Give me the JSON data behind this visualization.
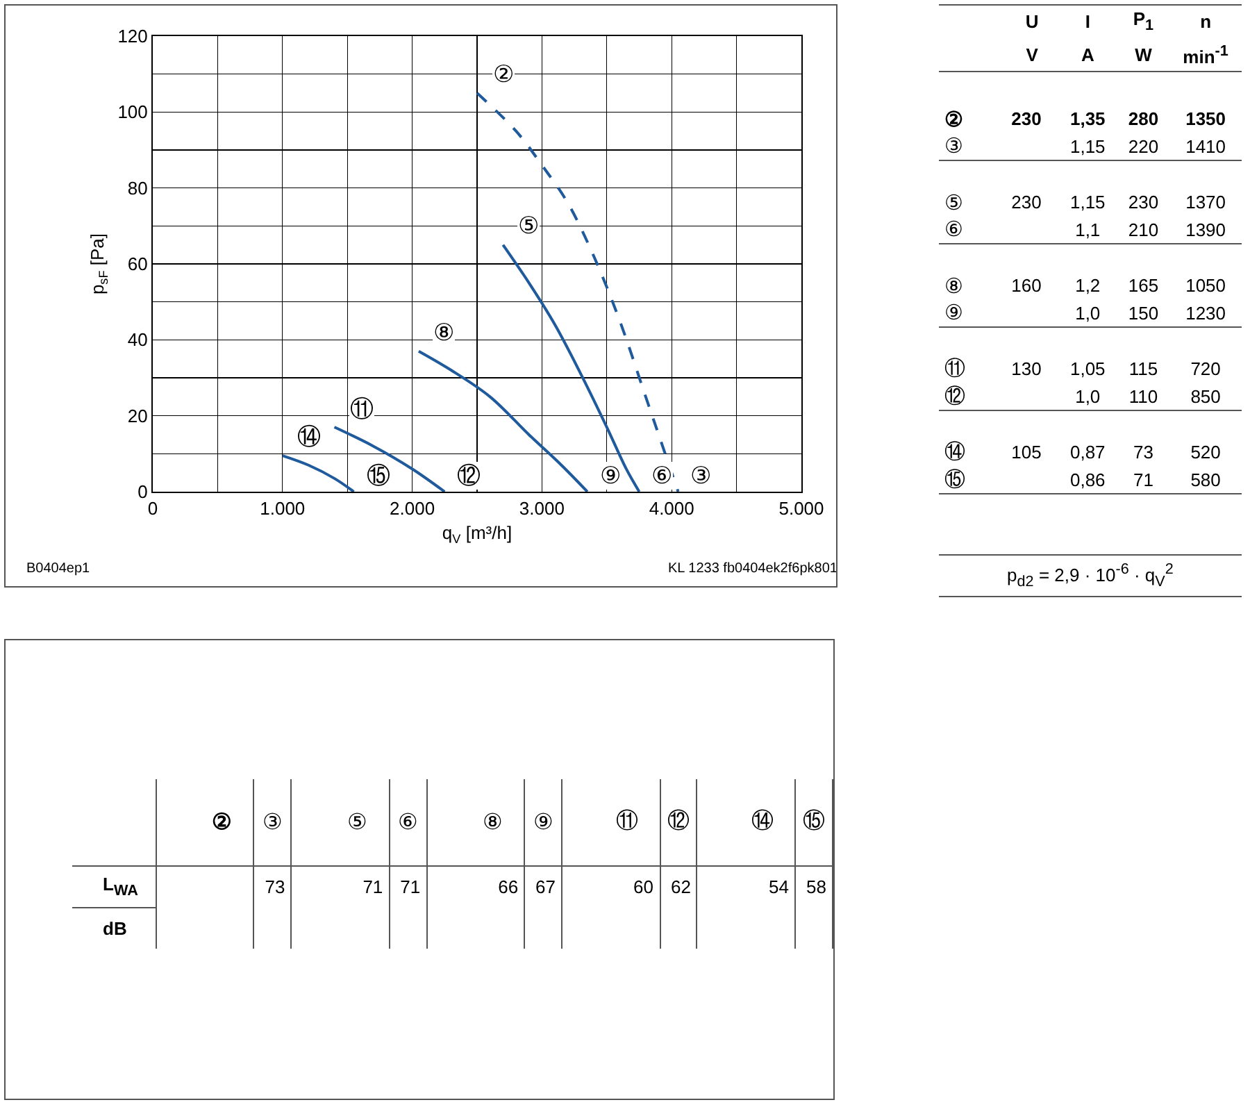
{
  "chart_data": [
    {
      "type": "line",
      "xlabel": "q$_{V}$ [m³/h]",
      "ylabel": "p$_{sF}$ [Pa]",
      "xlim": [
        0,
        5000
      ],
      "ylim": [
        0,
        120
      ],
      "xticks": [
        0,
        {
          "value": 500,
          "label": null
        },
        {
          "value": 1000,
          "label": "1.000"
        },
        {
          "value": 1500,
          "label": null
        },
        {
          "value": 2000,
          "label": "2.000"
        },
        {
          "value": 2500,
          "label": null
        },
        {
          "value": 3000,
          "label": "3.000"
        },
        {
          "value": 3500,
          "label": null
        },
        {
          "value": 4000,
          "label": "4.000"
        },
        {
          "value": 4500,
          "label": null
        },
        {
          "value": 5000,
          "label": "5.000"
        }
      ],
      "yticks": [
        0,
        {
          "value": 10,
          "label": null
        },
        20,
        {
          "value": 30,
          "label": null
        },
        40,
        {
          "value": 50,
          "label": null
        },
        60,
        {
          "value": 70,
          "label": null
        },
        80,
        {
          "value": 90,
          "label": null
        },
        100,
        {
          "value": 110,
          "label": null
        },
        120
      ],
      "grid": true,
      "marker": "none",
      "series": [
        {
          "color": "#1f5a9c",
          "line_style": "dashed",
          "x": [
            2500,
            2800,
            3000,
            3200,
            3400,
            3600,
            3800,
            3950,
            4050
          ],
          "values": [
            105,
            95,
            86,
            76,
            62,
            45,
            25,
            10,
            0
          ]
        },
        {
          "color": "#1f5a9c",
          "line_style": "solid",
          "x": [
            2700,
            2900,
            3100,
            3300,
            3500,
            3650,
            3750
          ],
          "values": [
            65,
            55,
            44,
            31,
            17,
            6,
            0
          ]
        },
        {
          "color": "#1f5a9c",
          "line_style": "solid",
          "x": [
            2050,
            2300,
            2600,
            2900,
            3150,
            3350
          ],
          "values": [
            37,
            32,
            25,
            15,
            7,
            0
          ]
        },
        {
          "color": "#1f5a9c",
          "line_style": "solid",
          "x": [
            1400,
            1700,
            2000,
            2250
          ],
          "values": [
            17,
            12,
            6,
            0
          ]
        },
        {
          "color": "#1f5a9c",
          "line_style": "solid",
          "x": [
            1000,
            1200,
            1400,
            1550
          ],
          "values": [
            9.5,
            7,
            3.5,
            0
          ]
        }
      ],
      "annotations": [
        "②",
        "③",
        "⑤",
        "⑥",
        "⑧",
        "⑨",
        "⑪",
        "⑫",
        "⑭",
        "⑮",
        "B0404ep1",
        "KL 1233 fb0404ek2f6pk801"
      ]
    },
    {
      "type": "other",
      "categories": [
        "U",
        "I",
        "P$_{1}$",
        "n"
      ],
      "series": [
        {
          "name": "②",
          "values": [
            230,
            1.35,
            280,
            1350
          ],
          "value_labels": [
            "230",
            "1,35",
            "280",
            "1350"
          ]
        },
        {
          "name": "③",
          "values": [
            null,
            1.15,
            220,
            1410
          ],
          "value_labels": [
            null,
            "1,15",
            "220",
            "1410"
          ]
        },
        {
          "name": "⑤",
          "values": [
            230,
            1.15,
            230,
            1370
          ],
          "value_labels": [
            "230",
            "1,15",
            "230",
            "1370"
          ]
        },
        {
          "name": "⑥",
          "values": [
            null,
            1.1,
            210,
            1390
          ],
          "value_labels": [
            null,
            "1,1",
            "210",
            "1390"
          ]
        },
        {
          "name": "⑧",
          "values": [
            160,
            1.2,
            165,
            1050
          ],
          "value_labels": [
            "160",
            "1,2",
            "165",
            "1050"
          ]
        },
        {
          "name": "⑨",
          "values": [
            null,
            1.0,
            150,
            1230
          ],
          "value_labels": [
            null,
            "1,0",
            "150",
            "1230"
          ]
        },
        {
          "name": "⑪",
          "values": [
            130,
            1.05,
            115,
            720
          ],
          "value_labels": [
            "130",
            "1,05",
            "115",
            "720"
          ]
        },
        {
          "name": "⑫",
          "values": [
            null,
            1.0,
            110,
            850
          ],
          "value_labels": [
            null,
            "1,0",
            "110",
            "850"
          ]
        },
        {
          "name": "⑭",
          "values": [
            105,
            0.87,
            73,
            520
          ],
          "value_labels": [
            "105",
            "0,87",
            "73",
            "520"
          ]
        },
        {
          "name": "⑮",
          "values": [
            null,
            0.86,
            71,
            580
          ],
          "value_labels": [
            null,
            "0,86",
            "71",
            "580"
          ]
        }
      ],
      "annotations": [
        "V",
        "A",
        "W",
        "min$^{-1}$",
        "p$_{d2}$ = 2,9 · 10$^{-6}$ · q$_{V}$$^{2}$"
      ]
    },
    {
      "type": "other",
      "categories": [
        "②",
        "③",
        "⑤",
        "⑥",
        "⑧",
        "⑨",
        "⑪",
        "⑫",
        "⑭",
        "⑮"
      ],
      "values": [
        null,
        73,
        71,
        71,
        66,
        67,
        60,
        62,
        54,
        58
      ],
      "data_labels": true,
      "ylabel": "L$_{WA}$",
      "annotations": [
        "dB"
      ]
    }
  ]
}
